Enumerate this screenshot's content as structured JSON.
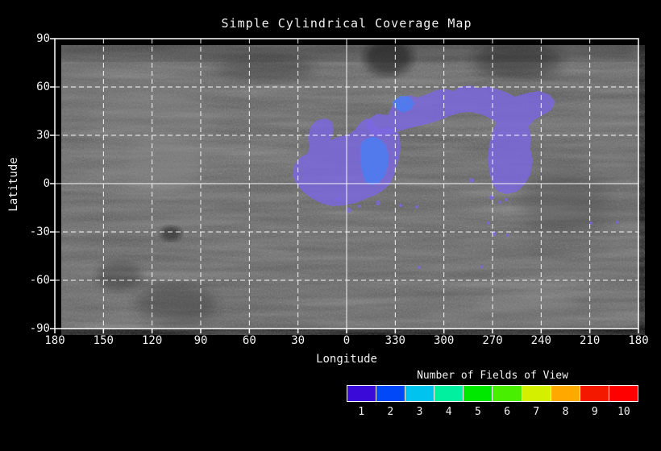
{
  "title": "Simple Cylindrical Coverage Map",
  "x_axis": {
    "label": "Longitude"
  },
  "y_axis": {
    "label": "Latitude"
  },
  "chart_data": {
    "type": "heatmap",
    "title": "Simple Cylindrical Coverage Map",
    "xlabel": "Longitude",
    "ylabel": "Latitude",
    "x_ticks": [
      180,
      150,
      120,
      90,
      60,
      30,
      0,
      330,
      300,
      270,
      240,
      210,
      180
    ],
    "y_ticks": [
      90,
      60,
      30,
      0,
      -30,
      -60,
      -90
    ],
    "xlim_deg": "longitude wraps 180 -> 0 -> 180 (west to east)",
    "ylim": [
      -90,
      90
    ],
    "grid": "white dashed graticule every 30 degrees; equator and prime meridian drawn solid",
    "basemap": "grayscale simple-cylindrical planetary mosaic",
    "colorbar": {
      "title": "Number of Fields of View",
      "values": [
        1,
        2,
        3,
        4,
        5,
        6,
        7,
        8,
        9,
        10
      ],
      "colors": [
        "#3a0bd8",
        "#0048f8",
        "#00c4f0",
        "#00f0a0",
        "#00e800",
        "#48f000",
        "#d4f000",
        "#ffa800",
        "#f51800",
        "#ff0000"
      ]
    },
    "coverage": [
      {
        "fields_of_view": 1,
        "map_color": "#7c66e2",
        "extent": "crescent-shaped swath from lon ~35 across lon 0 to lon ~250, lat ~-10 to ~55, opening toward the south; scattered small patches below it"
      },
      {
        "fields_of_view": 2,
        "map_color": "#4f7cf0",
        "extent": "patch near lon 352-338, lat 0-28, plus a small patch near lon 330-324, lat 42-52"
      }
    ]
  },
  "overlay": {
    "fov1_color": "#7c66e2",
    "fov1_opacity": 0.8,
    "fov2_color": "#4f7cf0",
    "fov2_opacity": 0.9,
    "regions": [
      {
        "name": "coverage-fov1-southwest-lobe",
        "fov": 1,
        "points": [
          [
            295,
            170
          ],
          [
            297,
            157
          ],
          [
            304,
            148
          ],
          [
            313,
            143
          ],
          [
            316,
            135
          ],
          [
            314,
            122
          ],
          [
            318,
            108
          ],
          [
            326,
            101
          ],
          [
            336,
            99
          ],
          [
            344,
            103
          ],
          [
            346,
            114
          ],
          [
            342,
            126
          ],
          [
            352,
            122
          ],
          [
            364,
            119
          ],
          [
            372,
            114
          ],
          [
            379,
            104
          ],
          [
            387,
            99
          ],
          [
            394,
            101
          ],
          [
            398,
            109
          ],
          [
            404,
            112
          ],
          [
            412,
            110
          ],
          [
            422,
            112
          ],
          [
            428,
            120
          ],
          [
            429,
            137
          ],
          [
            426,
            152
          ],
          [
            422,
            167
          ],
          [
            416,
            180
          ],
          [
            408,
            188
          ],
          [
            398,
            194
          ],
          [
            386,
            199
          ],
          [
            373,
            204
          ],
          [
            359,
            207
          ],
          [
            345,
            208
          ],
          [
            332,
            205
          ],
          [
            320,
            199
          ],
          [
            309,
            191
          ],
          [
            300,
            181
          ]
        ]
      },
      {
        "name": "coverage-fov1-northern-arc",
        "fov": 1,
        "points": [
          [
            387,
            102
          ],
          [
            400,
            93
          ],
          [
            413,
            95
          ],
          [
            419,
            83
          ],
          [
            429,
            74
          ],
          [
            440,
            70
          ],
          [
            450,
            73
          ],
          [
            462,
            69
          ],
          [
            473,
            64
          ],
          [
            484,
            62
          ],
          [
            494,
            65
          ],
          [
            503,
            60
          ],
          [
            515,
            58
          ],
          [
            525,
            62
          ],
          [
            535,
            59
          ],
          [
            547,
            62
          ],
          [
            559,
            66
          ],
          [
            571,
            72
          ],
          [
            584,
            68
          ],
          [
            600,
            65
          ],
          [
            613,
            69
          ],
          [
            621,
            78
          ],
          [
            616,
            89
          ],
          [
            605,
            95
          ],
          [
            595,
            101
          ],
          [
            588,
            109
          ],
          [
            591,
            122
          ],
          [
            590,
            137
          ],
          [
            593,
            152
          ],
          [
            590,
            169
          ],
          [
            583,
            181
          ],
          [
            573,
            190
          ],
          [
            561,
            193
          ],
          [
            550,
            190
          ],
          [
            543,
            181
          ],
          [
            539,
            166
          ],
          [
            537,
            149
          ],
          [
            539,
            131
          ],
          [
            543,
            116
          ],
          [
            548,
            104
          ],
          [
            540,
            99
          ],
          [
            529,
            94
          ],
          [
            516,
            91
          ],
          [
            503,
            92
          ],
          [
            490,
            96
          ],
          [
            478,
            101
          ],
          [
            466,
            105
          ],
          [
            453,
            108
          ],
          [
            441,
            111
          ],
          [
            430,
            114
          ],
          [
            420,
            118
          ],
          [
            410,
            121
          ],
          [
            400,
            122
          ],
          [
            392,
            118
          ],
          [
            387,
            110
          ]
        ]
      },
      {
        "name": "coverage-fov2-main-patch",
        "fov": 2,
        "points": [
          [
            381,
            128
          ],
          [
            389,
            123
          ],
          [
            397,
            122
          ],
          [
            405,
            126
          ],
          [
            411,
            133
          ],
          [
            414,
            145
          ],
          [
            413,
            159
          ],
          [
            409,
            171
          ],
          [
            402,
            179
          ],
          [
            393,
            182
          ],
          [
            385,
            178
          ],
          [
            381,
            165
          ],
          [
            379,
            149
          ],
          [
            379,
            137
          ]
        ]
      },
      {
        "name": "coverage-fov2-small-patch",
        "fov": 2,
        "points": [
          [
            421,
            76
          ],
          [
            430,
            71
          ],
          [
            440,
            72
          ],
          [
            446,
            80
          ],
          [
            442,
            88
          ],
          [
            432,
            92
          ],
          [
            423,
            87
          ],
          [
            419,
            81
          ]
        ]
      }
    ],
    "specks": [
      [
        4,
        276,
        2
      ],
      [
        352,
        199,
        3
      ],
      [
        365,
        213,
        3
      ],
      [
        378,
        208,
        2
      ],
      [
        401,
        204,
        3
      ],
      [
        429,
        207,
        2
      ],
      [
        449,
        209,
        2
      ],
      [
        517,
        176,
        3
      ],
      [
        542,
        197,
        3
      ],
      [
        552,
        203,
        2
      ],
      [
        560,
        200,
        2
      ],
      [
        538,
        229,
        2
      ],
      [
        545,
        242,
        3
      ],
      [
        562,
        244,
        2
      ],
      [
        530,
        283,
        2
      ],
      [
        452,
        284,
        2
      ],
      [
        665,
        229,
        2
      ],
      [
        698,
        228,
        2
      ]
    ]
  }
}
